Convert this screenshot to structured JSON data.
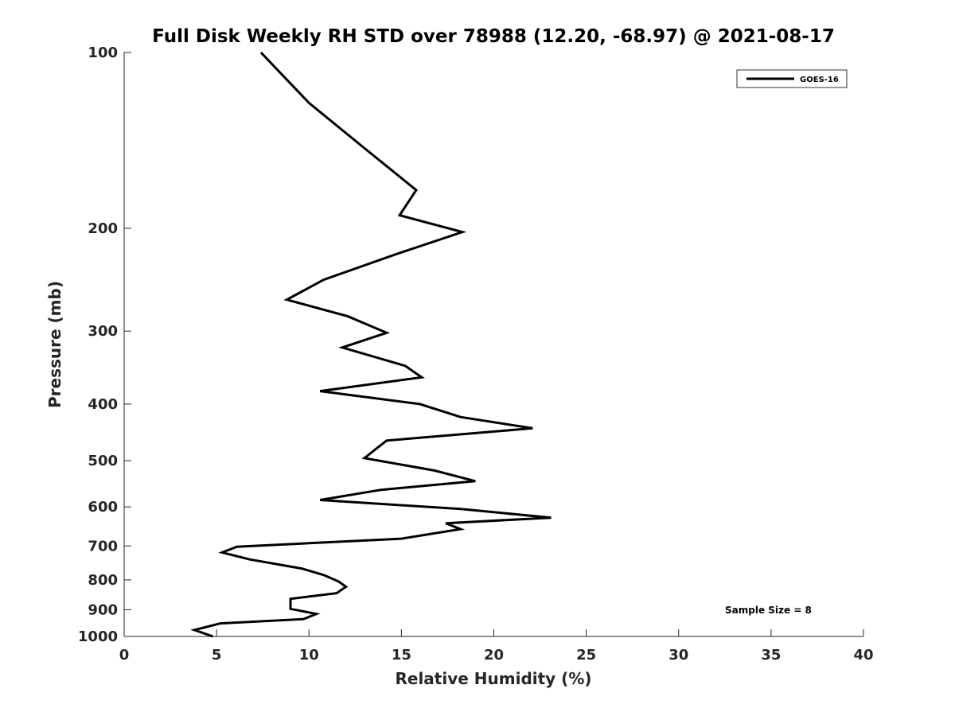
{
  "chart_data": {
    "type": "line",
    "title": "Full Disk Weekly RH STD over 78988 (12.20, -68.97) @ 2021-08-17",
    "xlabel": "Relative Humidity (%)",
    "ylabel": "Pressure (mb)",
    "xlim": [
      0,
      40
    ],
    "ylim": [
      100,
      1000
    ],
    "yscale": "log",
    "y_reversed": true,
    "grid": false,
    "legend_position": "top-right",
    "x_ticks": [
      "0",
      "5",
      "10",
      "15",
      "20",
      "25",
      "30",
      "35",
      "40"
    ],
    "y_ticks": [
      "100",
      "200",
      "300",
      "400",
      "500",
      "600",
      "700",
      "800",
      "900",
      "1000"
    ],
    "annotation": "Sample Size = 8",
    "series": [
      {
        "name": "GOES-16",
        "color": "#000000",
        "points": [
          [
            7.4,
            100
          ],
          [
            10.0,
            122
          ],
          [
            12.9,
            145
          ],
          [
            15.8,
            172
          ],
          [
            14.9,
            190
          ],
          [
            18.3,
            203
          ],
          [
            14.8,
            221
          ],
          [
            10.8,
            245
          ],
          [
            8.8,
            265
          ],
          [
            12.1,
            283
          ],
          [
            14.2,
            302
          ],
          [
            11.8,
            320
          ],
          [
            15.2,
            344
          ],
          [
            16.1,
            360
          ],
          [
            10.6,
            380
          ],
          [
            16.0,
            400
          ],
          [
            18.2,
            421
          ],
          [
            22.1,
            440
          ],
          [
            14.2,
            462
          ],
          [
            13.6,
            478
          ],
          [
            13.0,
            495
          ],
          [
            16.8,
            520
          ],
          [
            19.0,
            542
          ],
          [
            13.9,
            561
          ],
          [
            10.6,
            584
          ],
          [
            18.2,
            605
          ],
          [
            23.1,
            626
          ],
          [
            17.4,
            640
          ],
          [
            18.2,
            655
          ],
          [
            15.0,
            680
          ],
          [
            6.1,
            702
          ],
          [
            5.3,
            718
          ],
          [
            6.8,
            738
          ],
          [
            9.6,
            765
          ],
          [
            10.8,
            785
          ],
          [
            11.6,
            805
          ],
          [
            12.0,
            822
          ],
          [
            11.5,
            843
          ],
          [
            9.0,
            862
          ],
          [
            9.0,
            897
          ],
          [
            10.4,
            915
          ],
          [
            9.7,
            934
          ],
          [
            5.2,
            950
          ],
          [
            3.8,
            975
          ],
          [
            4.8,
            1000
          ]
        ]
      }
    ]
  }
}
